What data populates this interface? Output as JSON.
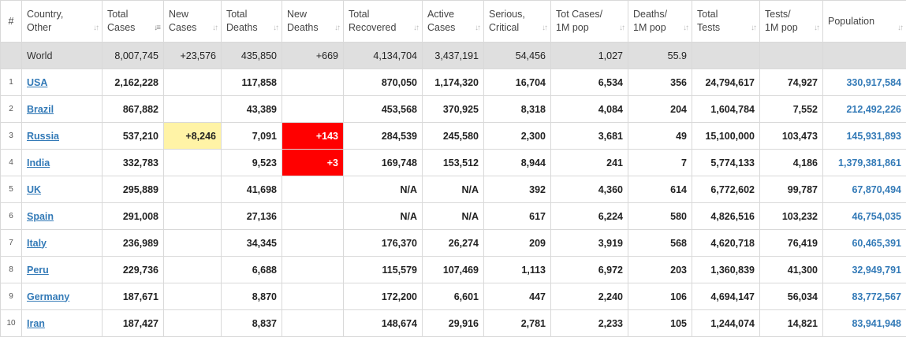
{
  "headers": [
    {
      "line1": "#",
      "line2": ""
    },
    {
      "line1": "Country,",
      "line2": "Other"
    },
    {
      "line1": "Total",
      "line2": "Cases"
    },
    {
      "line1": "New",
      "line2": "Cases"
    },
    {
      "line1": "Total",
      "line2": "Deaths"
    },
    {
      "line1": "New",
      "line2": "Deaths"
    },
    {
      "line1": "Total",
      "line2": "Recovered"
    },
    {
      "line1": "Active",
      "line2": "Cases"
    },
    {
      "line1": "Serious,",
      "line2": "Critical"
    },
    {
      "line1": "Tot Cases/",
      "line2": "1M pop"
    },
    {
      "line1": "Deaths/",
      "line2": "1M pop"
    },
    {
      "line1": "Total",
      "line2": "Tests"
    },
    {
      "line1": "Tests/",
      "line2": "1M pop"
    },
    {
      "line1": "Population",
      "line2": ""
    }
  ],
  "sort_glyph": "↓↑",
  "sort_active_glyph": "↓≡",
  "world": {
    "country": "World",
    "total_cases": "8,007,745",
    "new_cases": "+23,576",
    "total_deaths": "435,850",
    "new_deaths": "+669",
    "total_recovered": "4,134,704",
    "active_cases": "3,437,191",
    "serious_critical": "54,456",
    "tot_cases_1m": "1,027",
    "deaths_1m": "55.9",
    "total_tests": "",
    "tests_1m": "",
    "population": ""
  },
  "rows": [
    {
      "idx": "1",
      "country": "USA",
      "total_cases": "2,162,228",
      "new_cases": "",
      "total_deaths": "117,858",
      "new_deaths": "",
      "total_recovered": "870,050",
      "active_cases": "1,174,320",
      "serious_critical": "16,704",
      "tot_cases_1m": "6,534",
      "deaths_1m": "356",
      "total_tests": "24,794,617",
      "tests_1m": "74,927",
      "population": "330,917,584"
    },
    {
      "idx": "2",
      "country": "Brazil",
      "total_cases": "867,882",
      "new_cases": "",
      "total_deaths": "43,389",
      "new_deaths": "",
      "total_recovered": "453,568",
      "active_cases": "370,925",
      "serious_critical": "8,318",
      "tot_cases_1m": "4,084",
      "deaths_1m": "204",
      "total_tests": "1,604,784",
      "tests_1m": "7,552",
      "population": "212,492,226"
    },
    {
      "idx": "3",
      "country": "Russia",
      "total_cases": "537,210",
      "new_cases": "+8,246",
      "total_deaths": "7,091",
      "new_deaths": "+143",
      "total_recovered": "284,539",
      "active_cases": "245,580",
      "serious_critical": "2,300",
      "tot_cases_1m": "3,681",
      "deaths_1m": "49",
      "total_tests": "15,100,000",
      "tests_1m": "103,473",
      "population": "145,931,893"
    },
    {
      "idx": "4",
      "country": "India",
      "total_cases": "332,783",
      "new_cases": "",
      "total_deaths": "9,523",
      "new_deaths": "+3",
      "total_recovered": "169,748",
      "active_cases": "153,512",
      "serious_critical": "8,944",
      "tot_cases_1m": "241",
      "deaths_1m": "7",
      "total_tests": "5,774,133",
      "tests_1m": "4,186",
      "population": "1,379,381,861"
    },
    {
      "idx": "5",
      "country": "UK",
      "total_cases": "295,889",
      "new_cases": "",
      "total_deaths": "41,698",
      "new_deaths": "",
      "total_recovered": "N/A",
      "active_cases": "N/A",
      "serious_critical": "392",
      "tot_cases_1m": "4,360",
      "deaths_1m": "614",
      "total_tests": "6,772,602",
      "tests_1m": "99,787",
      "population": "67,870,494"
    },
    {
      "idx": "6",
      "country": "Spain",
      "total_cases": "291,008",
      "new_cases": "",
      "total_deaths": "27,136",
      "new_deaths": "",
      "total_recovered": "N/A",
      "active_cases": "N/A",
      "serious_critical": "617",
      "tot_cases_1m": "6,224",
      "deaths_1m": "580",
      "total_tests": "4,826,516",
      "tests_1m": "103,232",
      "population": "46,754,035"
    },
    {
      "idx": "7",
      "country": "Italy",
      "total_cases": "236,989",
      "new_cases": "",
      "total_deaths": "34,345",
      "new_deaths": "",
      "total_recovered": "176,370",
      "active_cases": "26,274",
      "serious_critical": "209",
      "tot_cases_1m": "3,919",
      "deaths_1m": "568",
      "total_tests": "4,620,718",
      "tests_1m": "76,419",
      "population": "60,465,391"
    },
    {
      "idx": "8",
      "country": "Peru",
      "total_cases": "229,736",
      "new_cases": "",
      "total_deaths": "6,688",
      "new_deaths": "",
      "total_recovered": "115,579",
      "active_cases": "107,469",
      "serious_critical": "1,113",
      "tot_cases_1m": "6,972",
      "deaths_1m": "203",
      "total_tests": "1,360,839",
      "tests_1m": "41,300",
      "population": "32,949,791"
    },
    {
      "idx": "9",
      "country": "Germany",
      "total_cases": "187,671",
      "new_cases": "",
      "total_deaths": "8,870",
      "new_deaths": "",
      "total_recovered": "172,200",
      "active_cases": "6,601",
      "serious_critical": "447",
      "tot_cases_1m": "2,240",
      "deaths_1m": "106",
      "total_tests": "4,694,147",
      "tests_1m": "56,034",
      "population": "83,772,567"
    },
    {
      "idx": "10",
      "country": "Iran",
      "total_cases": "187,427",
      "new_cases": "",
      "total_deaths": "8,837",
      "new_deaths": "",
      "total_recovered": "148,674",
      "active_cases": "29,916",
      "serious_critical": "2,781",
      "tot_cases_1m": "2,233",
      "deaths_1m": "105",
      "total_tests": "1,244,074",
      "tests_1m": "14,821",
      "population": "83,941,948"
    }
  ],
  "colors": {
    "link": "#337ab7",
    "new_cases_highlight": "#fff3a6",
    "new_deaths_highlight": "#ff0000",
    "world_row_bg": "#dfdfdf"
  }
}
